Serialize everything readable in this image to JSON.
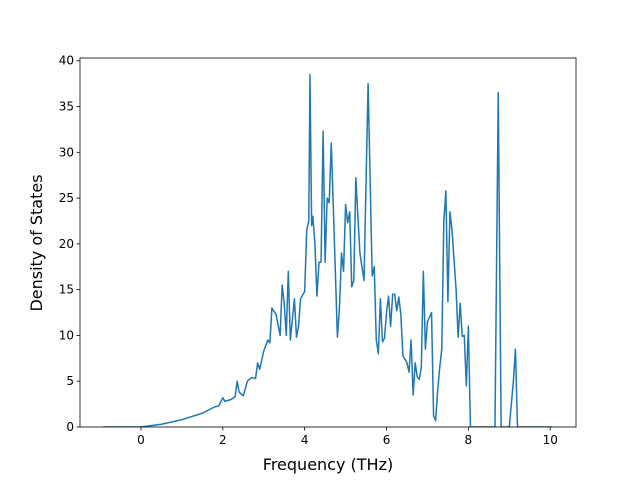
{
  "chart_data": {
    "type": "line",
    "xlabel": "Frequency (THz)",
    "ylabel": "Density of States",
    "xlim": [
      -1.49,
      10.63
    ],
    "ylim": [
      0,
      40.3
    ],
    "xticks": [
      0,
      2,
      4,
      6,
      8,
      10
    ],
    "yticks": [
      0,
      5,
      10,
      15,
      20,
      25,
      30,
      35,
      40
    ],
    "grid": false,
    "series": [
      {
        "name": "DOS",
        "color": "#1f77b4",
        "x": [
          -0.93,
          0,
          0.5,
          1.0,
          1.5,
          1.8,
          1.9,
          2.0,
          2.05,
          2.2,
          2.3,
          2.35,
          2.4,
          2.5,
          2.6,
          2.7,
          2.8,
          2.85,
          2.9,
          3.0,
          3.1,
          3.15,
          3.2,
          3.3,
          3.4,
          3.45,
          3.5,
          3.55,
          3.6,
          3.65,
          3.75,
          3.8,
          3.85,
          3.9,
          4.0,
          4.05,
          4.1,
          4.13,
          4.17,
          4.2,
          4.25,
          4.3,
          4.35,
          4.4,
          4.45,
          4.5,
          4.55,
          4.6,
          4.65,
          4.7,
          4.8,
          4.85,
          4.9,
          4.95,
          5.0,
          5.05,
          5.1,
          5.15,
          5.2,
          5.25,
          5.3,
          5.35,
          5.45,
          5.55,
          5.6,
          5.65,
          5.7,
          5.75,
          5.8,
          5.85,
          5.9,
          5.95,
          6.0,
          6.05,
          6.1,
          6.15,
          6.2,
          6.25,
          6.3,
          6.35,
          6.4,
          6.5,
          6.55,
          6.6,
          6.65,
          6.7,
          6.75,
          6.8,
          6.85,
          6.9,
          6.95,
          7.0,
          7.1,
          7.15,
          7.2,
          7.25,
          7.3,
          7.35,
          7.4,
          7.45,
          7.5,
          7.55,
          7.6,
          7.7,
          7.75,
          7.8,
          7.85,
          7.9,
          7.95,
          8.0,
          8.05,
          8.65,
          8.73,
          8.8,
          9.0,
          9.1,
          9.15,
          9.2,
          10.05
        ],
        "values": [
          0,
          0,
          0.3,
          0.8,
          1.5,
          2.2,
          2.3,
          3.2,
          2.8,
          3.0,
          3.3,
          5.0,
          3.8,
          3.4,
          5.0,
          5.4,
          5.3,
          7.0,
          6.3,
          8.3,
          9.5,
          9.2,
          13.0,
          12.3,
          10.0,
          15.5,
          13.5,
          10.0,
          17.0,
          9.5,
          14.0,
          9.8,
          11.0,
          14.0,
          14.8,
          21.5,
          22.5,
          38.5,
          22.0,
          23.0,
          20.0,
          14.3,
          18.0,
          18.0,
          32.3,
          18.0,
          25.0,
          24.5,
          31.0,
          24.0,
          9.8,
          13.0,
          19.0,
          17.0,
          24.3,
          22.3,
          23.5,
          15.3,
          16.0,
          27.2,
          23.0,
          19.0,
          16.0,
          37.5,
          27.0,
          16.5,
          17.5,
          9.5,
          8.0,
          14.0,
          9.3,
          9.7,
          12.5,
          14.3,
          11.0,
          14.5,
          14.5,
          12.7,
          14.2,
          12.3,
          7.8,
          7.0,
          6.0,
          9.5,
          3.5,
          7.0,
          5.5,
          5.2,
          6.5,
          17.0,
          8.5,
          11.5,
          12.5,
          1.2,
          0.7,
          4.0,
          6.5,
          8.5,
          22.5,
          25.8,
          13.7,
          23.5,
          21.5,
          15.0,
          9.8,
          13.5,
          9.9,
          10.0,
          4.5,
          11.0,
          0,
          0,
          36.5,
          0,
          0,
          5.0,
          8.5,
          0,
          0
        ]
      }
    ]
  }
}
